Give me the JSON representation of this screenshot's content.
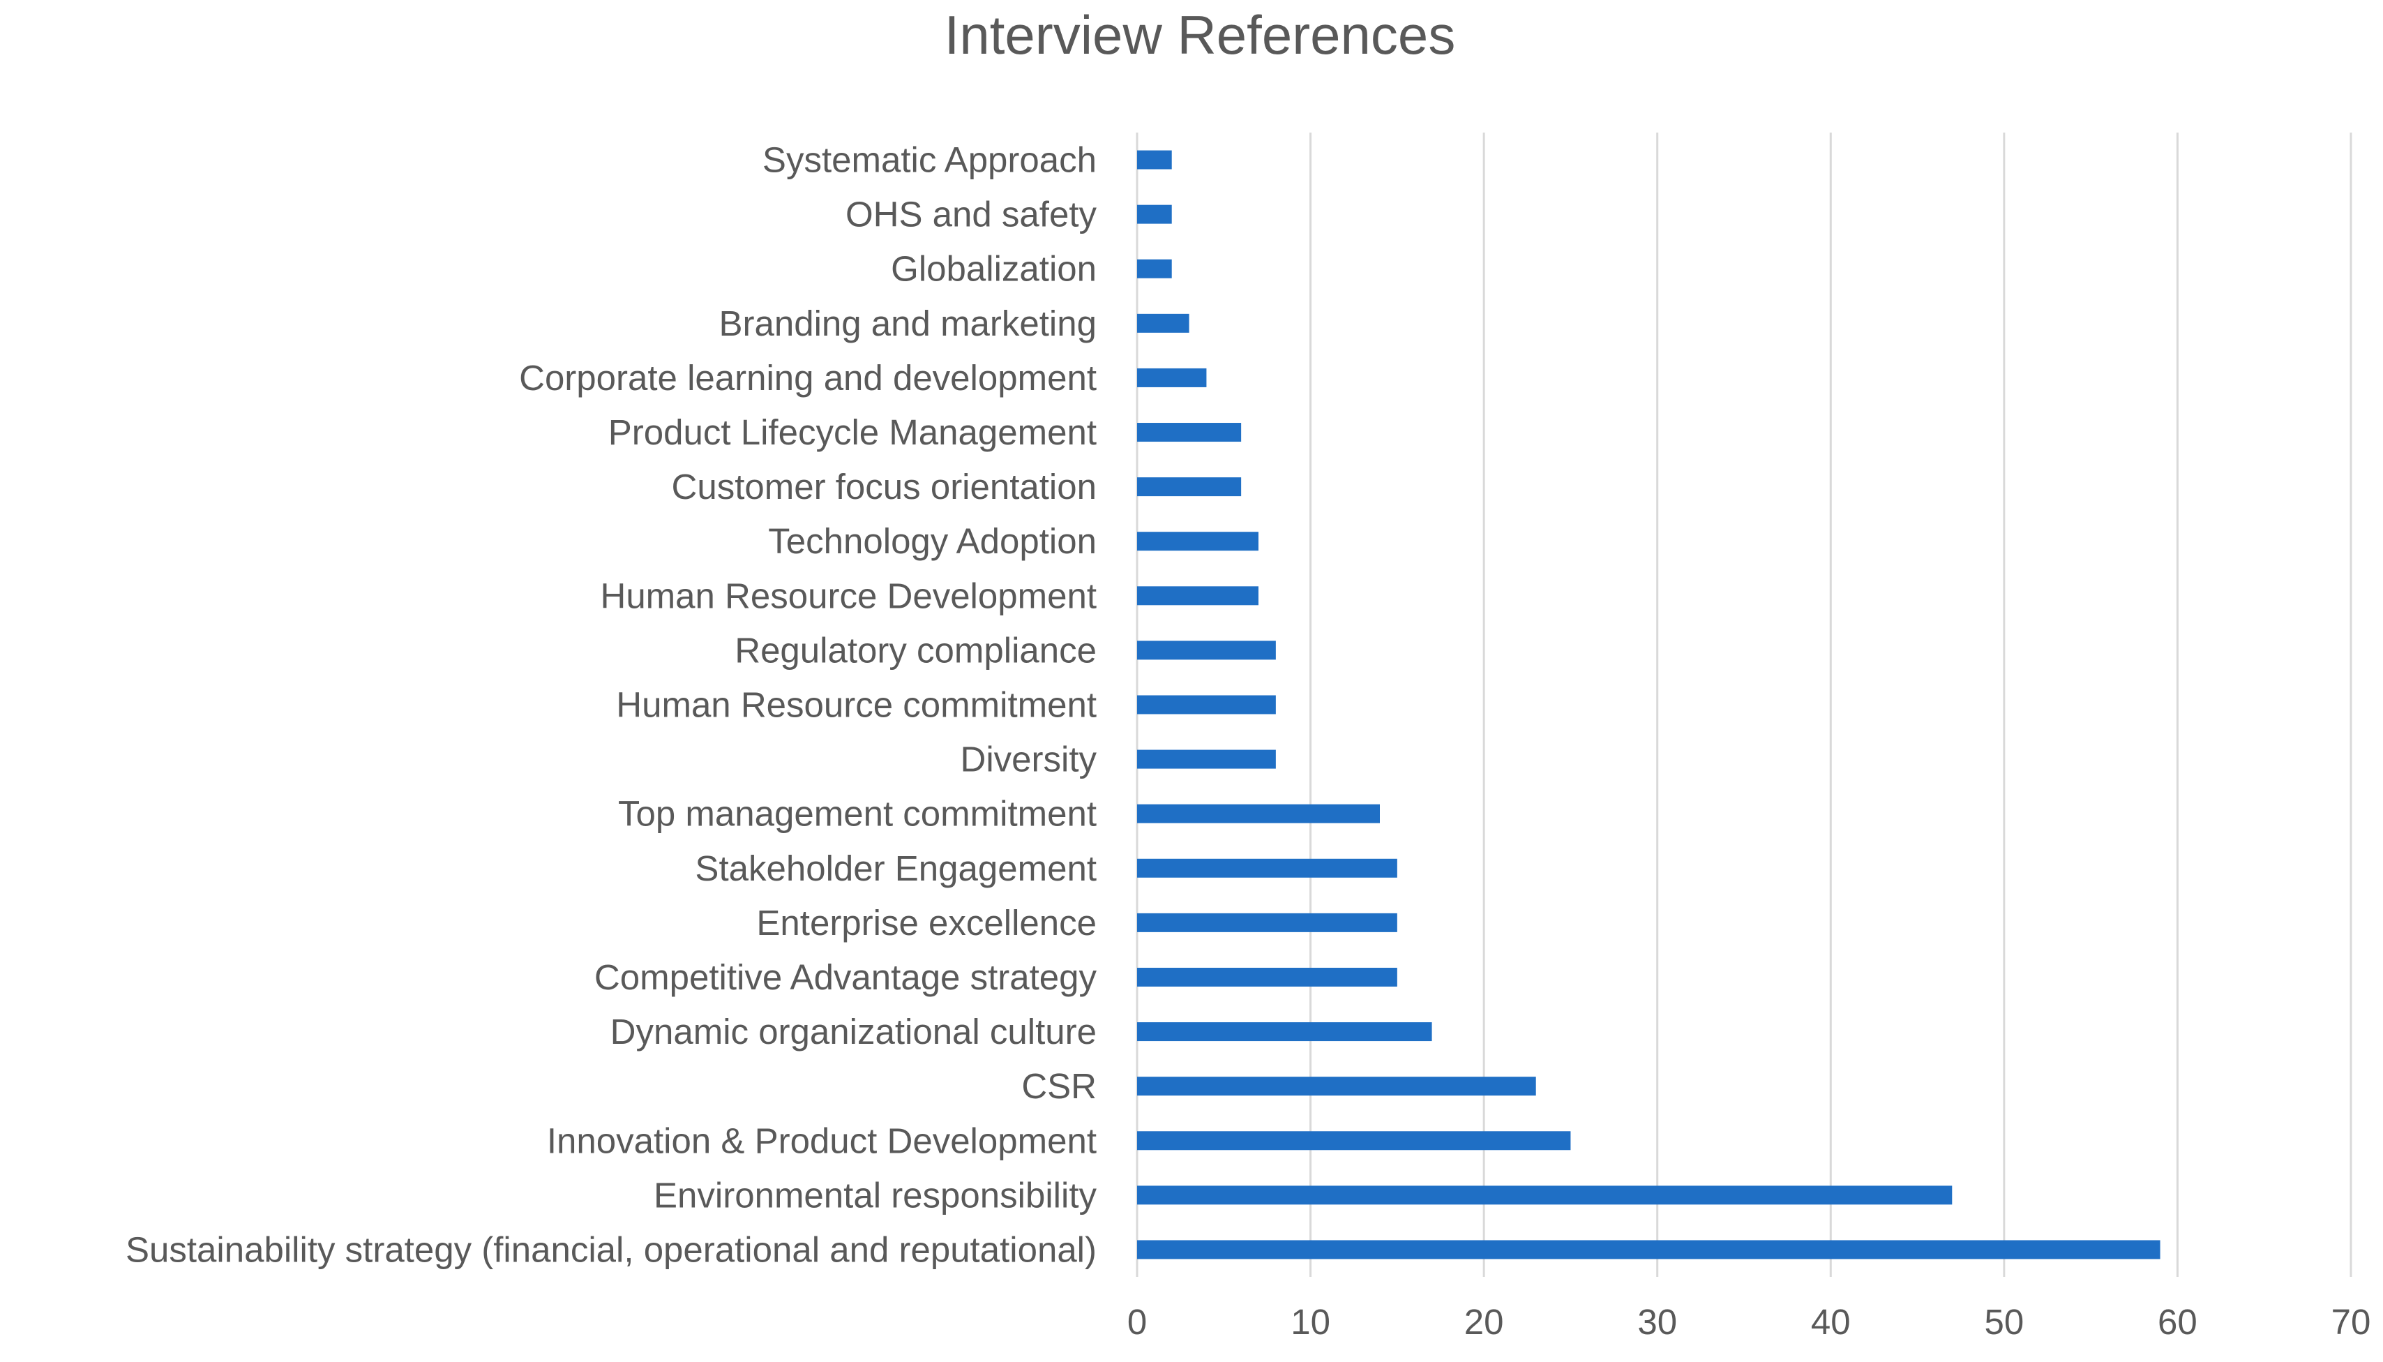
{
  "chart_data": {
    "type": "bar",
    "orientation": "horizontal",
    "title": "Interview References",
    "xlabel": "",
    "ylabel": "",
    "xlim": [
      0,
      70
    ],
    "x_ticks": [
      0,
      10,
      20,
      30,
      40,
      50,
      60,
      70
    ],
    "grid": true,
    "legend": "none",
    "bar_color": "#1f6fc5",
    "categories": [
      "Systematic Approach",
      "OHS and safety",
      "Globalization",
      "Branding and marketing",
      "Corporate learning and development",
      "Product Lifecycle Management",
      "Customer focus orientation",
      "Technology Adoption",
      "Human Resource Development",
      "Regulatory compliance",
      "Human Resource commitment",
      "Diversity",
      "Top management commitment",
      "Stakeholder Engagement",
      "Enterprise excellence",
      "Competitive Advantage strategy",
      "Dynamic organizational culture",
      "CSR",
      "Innovation & Product Development",
      "Environmental responsibility",
      "Sustainability strategy (financial, operational and reputational)"
    ],
    "values": [
      2,
      2,
      2,
      3,
      4,
      6,
      6,
      7,
      7,
      8,
      8,
      8,
      14,
      15,
      15,
      15,
      17,
      23,
      25,
      47,
      59
    ]
  }
}
